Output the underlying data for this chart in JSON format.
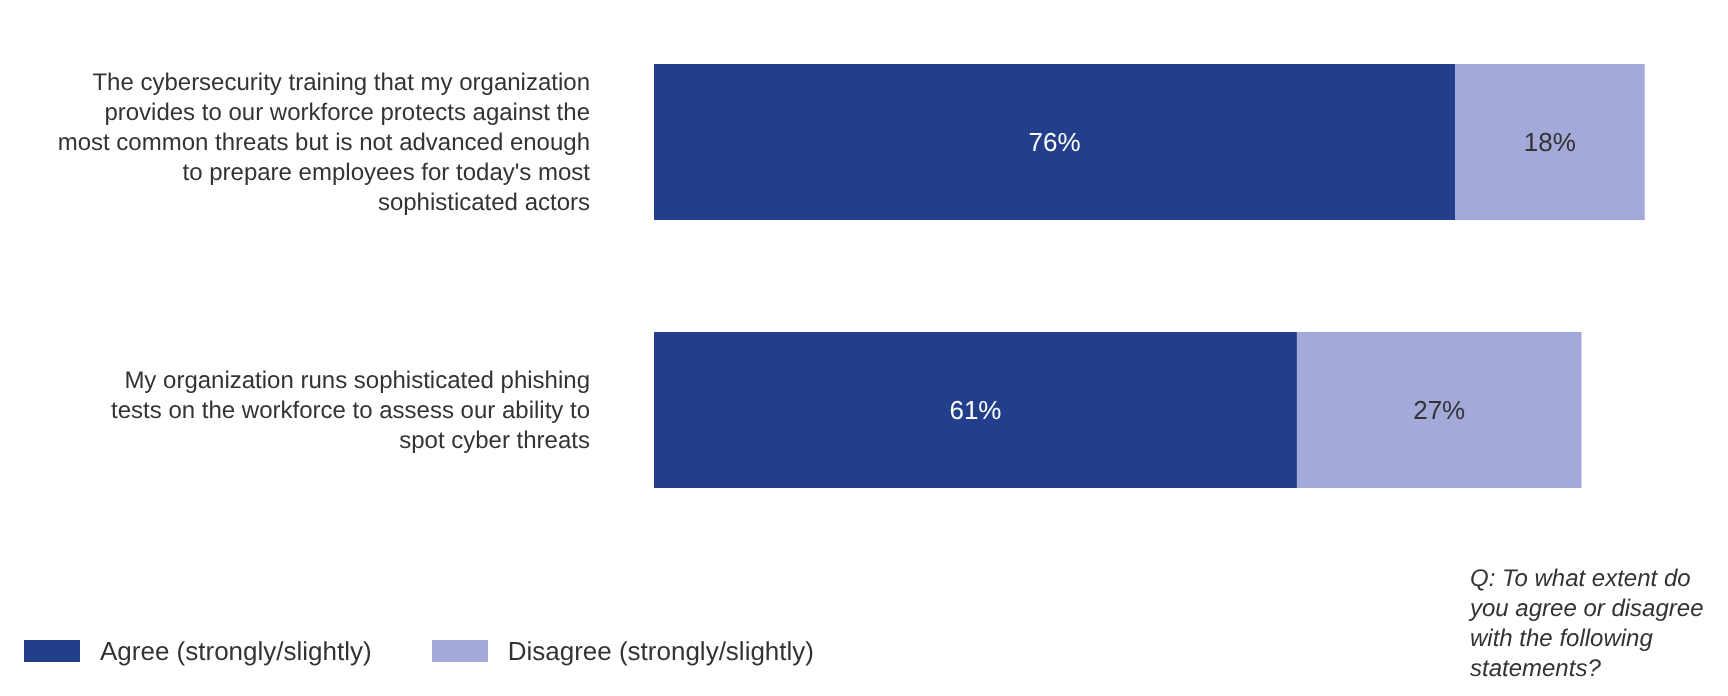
{
  "chart_data": {
    "type": "bar",
    "orientation": "horizontal",
    "stacked": true,
    "categories": [
      "The cybersecurity training that my organization provides to our workforce protects against the most common threats but is not advanced enough to prepare employees for today's most sophisticated actors",
      "My organization runs sophisticated phishing tests on the workforce to assess our ability to spot cyber threats"
    ],
    "series": [
      {
        "name": "Agree (strongly/slightly)",
        "color": "#233e8b",
        "values": [
          76,
          61
        ],
        "value_labels": [
          "76%",
          "61%"
        ]
      },
      {
        "name": "Disagree (strongly/slightly)",
        "color": "#a3a9d9",
        "values": [
          18,
          27
        ],
        "value_labels": [
          "18%",
          "27%"
        ]
      }
    ],
    "tick_labels": "y",
    "legend": "bottom left",
    "annotations": [
      "Q: To what extent do you agree or disagree with the following statements?"
    ]
  }
}
